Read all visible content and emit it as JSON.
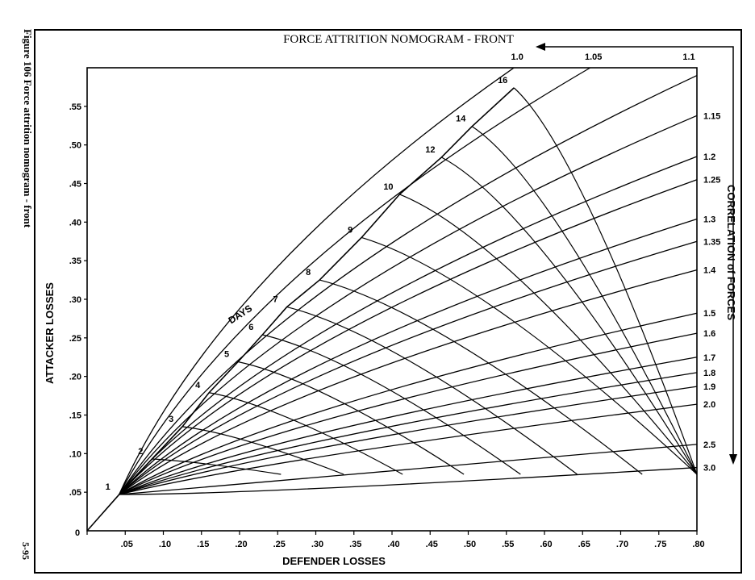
{
  "caption": "Figure 106 Force attrition nomogram - front",
  "page_number": "5-95",
  "chart_data": {
    "type": "line",
    "title": "FORCE ATTRITION NOMOGRAM - FRONT",
    "xlabel": "DEFENDER LOSSES",
    "ylabel": "ATTACKER LOSSES",
    "right_label": "CORRELATION of FORCES",
    "days_label": "DAYS",
    "xlim": [
      0,
      0.8
    ],
    "ylim": [
      0,
      0.6
    ],
    "x_ticks": [
      {
        "value": 0,
        "label": "0"
      },
      {
        "value": 0.05,
        "label": ".05"
      },
      {
        "value": 0.1,
        "label": ".10"
      },
      {
        "value": 0.15,
        "label": ".15"
      },
      {
        "value": 0.2,
        "label": ".20"
      },
      {
        "value": 0.25,
        "label": ".25"
      },
      {
        "value": 0.3,
        "label": ".30"
      },
      {
        "value": 0.35,
        "label": ".35"
      },
      {
        "value": 0.4,
        "label": ".40"
      },
      {
        "value": 0.45,
        "label": ".45"
      },
      {
        "value": 0.5,
        "label": ".50"
      },
      {
        "value": 0.55,
        "label": ".55"
      },
      {
        "value": 0.6,
        "label": ".60"
      },
      {
        "value": 0.65,
        "label": ".65"
      },
      {
        "value": 0.7,
        "label": ".70"
      },
      {
        "value": 0.75,
        "label": ".75"
      },
      {
        "value": 0.8,
        "label": ".80"
      }
    ],
    "y_ticks": [
      {
        "value": 0.05,
        "label": ".05"
      },
      {
        "value": 0.1,
        "label": ".10"
      },
      {
        "value": 0.15,
        "label": ".15"
      },
      {
        "value": 0.2,
        "label": ".20"
      },
      {
        "value": 0.25,
        "label": ".25"
      },
      {
        "value": 0.3,
        "label": ".30"
      },
      {
        "value": 0.35,
        "label": ".35"
      },
      {
        "value": 0.4,
        "label": ".40"
      },
      {
        "value": 0.45,
        "label": ".45"
      },
      {
        "value": 0.5,
        "label": ".50"
      },
      {
        "value": 0.55,
        "label": ".55"
      }
    ],
    "day_labels": [
      "1",
      "2",
      "3",
      "4",
      "5",
      "6",
      "7",
      "8",
      "9",
      "10",
      "12",
      "14",
      "16"
    ],
    "days_curve": [
      [
        0.042,
        0.047
      ],
      [
        0.085,
        0.093
      ],
      [
        0.125,
        0.135
      ],
      [
        0.16,
        0.179
      ],
      [
        0.198,
        0.219
      ],
      [
        0.23,
        0.254
      ],
      [
        0.262,
        0.29
      ],
      [
        0.305,
        0.325
      ],
      [
        0.36,
        0.38
      ],
      [
        0.41,
        0.436
      ],
      [
        0.465,
        0.484
      ],
      [
        0.505,
        0.524
      ],
      [
        0.56,
        0.574
      ]
    ],
    "correlation_labels": [
      "1.0",
      "1.05",
      "1.1",
      "1.15",
      "1.2",
      "1.25",
      "1.3",
      "1.35",
      "1.4",
      "1.5",
      "1.6",
      "1.7",
      "1.8",
      "1.9",
      "2.0",
      "2.5",
      "3.0"
    ],
    "correlation_endpoints": [
      [
        0.56,
        0.6
      ],
      [
        0.66,
        0.6
      ],
      [
        0.8,
        0.59
      ],
      [
        0.8,
        0.538
      ],
      [
        0.8,
        0.485
      ],
      [
        0.8,
        0.455
      ],
      [
        0.8,
        0.404
      ],
      [
        0.8,
        0.375
      ],
      [
        0.8,
        0.338
      ],
      [
        0.8,
        0.282
      ],
      [
        0.8,
        0.256
      ],
      [
        0.8,
        0.225
      ],
      [
        0.8,
        0.205
      ],
      [
        0.8,
        0.187
      ],
      [
        0.8,
        0.164
      ],
      [
        0.8,
        0.112
      ],
      [
        0.8,
        0.082
      ]
    ],
    "grid": false
  }
}
